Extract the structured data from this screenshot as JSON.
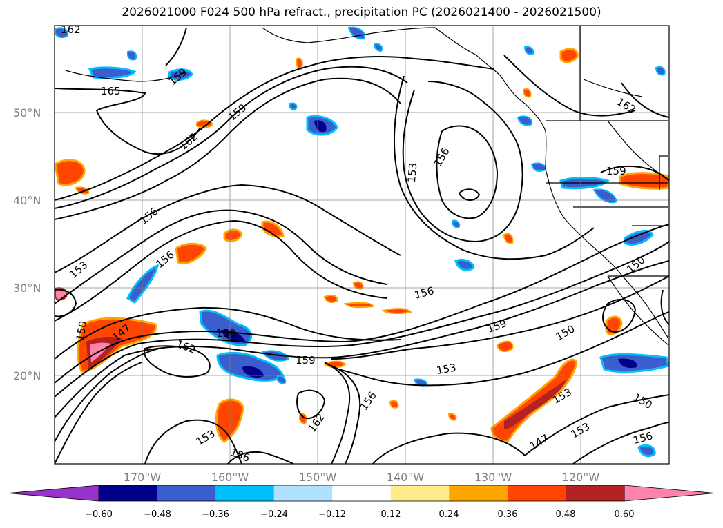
{
  "title": "2026021000 F024 500 hPa refract., precipitation PC (2026021400 - 2026021500)",
  "lat_labels": [
    "50°N",
    "40°N",
    "30°N",
    "20°N"
  ],
  "lon_labels": [
    "170°W",
    "160°W",
    "150°W",
    "140°W",
    "130°W",
    "120°W"
  ],
  "contour_labels": [
    "162",
    "165",
    "159",
    "162",
    "156",
    "153",
    "150",
    "147",
    "150",
    "162",
    "159",
    "162",
    "153",
    "156",
    "159",
    "156",
    "153",
    "159",
    "150",
    "153",
    "150",
    "147",
    "153",
    "156",
    "150",
    "156",
    "153",
    "156",
    "162",
    "159",
    "156"
  ],
  "colorbar": {
    "ticks": [
      "−0.60",
      "−0.48",
      "−0.36",
      "−0.24",
      "−0.12",
      "0.12",
      "0.24",
      "0.36",
      "0.48",
      "0.60"
    ],
    "colors": [
      "#9932CC",
      "#00008B",
      "#3A5FCD",
      "#00BFFF",
      "#B0E2FF",
      "#FFFFFF",
      "#FFEC8B",
      "#FFA500",
      "#FF4500",
      "#B22222",
      "#FF82AB"
    ]
  }
}
